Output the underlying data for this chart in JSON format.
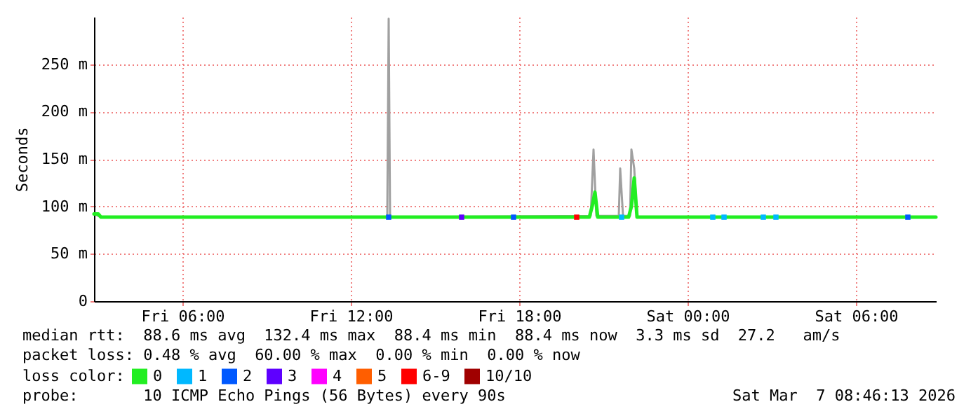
{
  "chart_data": {
    "type": "line",
    "ylabel": "Seconds",
    "legend_title": "loss color:",
    "legend": "bottom left",
    "grid": true,
    "xlim": [
      "2026-03-06T02:51",
      "2026-03-07T08:51"
    ],
    "xticks": [
      {
        "value": "2026-03-06T06:00",
        "label": "Fri 06:00"
      },
      {
        "value": "2026-03-06T12:00",
        "label": "Fri 12:00"
      },
      {
        "value": "2026-03-06T18:00",
        "label": "Fri 18:00"
      },
      {
        "value": "2026-03-07T00:00",
        "label": "Sat 00:00"
      },
      {
        "value": "2026-03-07T06:00",
        "label": "Sat 06:00"
      }
    ],
    "ylim": [
      0,
      300
    ],
    "yticks": [
      0,
      {
        "value": 50,
        "label": "50 m"
      },
      {
        "value": 100,
        "label": "100 m"
      },
      {
        "value": 150,
        "label": "150 m"
      },
      {
        "value": 200,
        "label": "200 m"
      },
      {
        "value": 250,
        "label": "250 m"
      }
    ],
    "series": [
      {
        "color": "#a0a0a0",
        "x": [
          "2026-03-06T02:51",
          "2026-03-06T03:06",
          "2026-03-06T13:18",
          "2026-03-06T13:21",
          "2026-03-06T13:24",
          "2026-03-06T20:33",
          "2026-03-06T20:39",
          "2026-03-06T20:45",
          "2026-03-06T21:33",
          "2026-03-06T21:36",
          "2026-03-06T21:42",
          "2026-03-06T21:57",
          "2026-03-06T22:00",
          "2026-03-06T22:06",
          "2026-03-06T22:12",
          "2026-03-07T08:51"
        ],
        "values": [
          92,
          88.6,
          88.6,
          298,
          88.6,
          90,
          160,
          90,
          90,
          140,
          90,
          90,
          160,
          140,
          88.6,
          88.6
        ]
      },
      {
        "name": "0",
        "color": "#22ee22",
        "x": [
          "2026-03-06T02:51",
          "2026-03-06T03:00",
          "2026-03-06T03:06",
          "2026-03-06T20:30",
          "2026-03-06T20:36",
          "2026-03-06T20:42",
          "2026-03-06T20:48",
          "2026-03-06T21:54",
          "2026-03-06T22:00",
          "2026-03-06T22:06",
          "2026-03-06T22:12",
          "2026-03-07T08:51"
        ],
        "values": [
          92,
          92,
          88.6,
          88.6,
          100,
          115,
          88.6,
          88.6,
          100,
          130,
          88.6,
          88.6
        ]
      },
      {
        "type": "scatter",
        "name": "1",
        "color": "#00b8ff",
        "x": [
          "2026-03-06T21:39",
          "2026-03-07T00:54",
          "2026-03-07T01:18",
          "2026-03-07T02:42",
          "2026-03-07T03:09"
        ],
        "values": [
          88.6,
          88.6,
          88.6,
          88.6,
          88.6
        ]
      },
      {
        "type": "scatter",
        "name": "2",
        "color": "#0059ff",
        "x": [
          "2026-03-06T13:21",
          "2026-03-06T17:48",
          "2026-03-07T07:51"
        ],
        "values": [
          88.6,
          88.6,
          88.6
        ]
      },
      {
        "type": "scatter",
        "name": "3",
        "color": "#5e00ff",
        "x": [
          "2026-03-06T15:57"
        ],
        "values": [
          88.6
        ]
      },
      {
        "type": "scatter",
        "name": "4",
        "color": "#ff00ff"
      },
      {
        "type": "scatter",
        "name": "5",
        "color": "#ff5e00"
      },
      {
        "type": "scatter",
        "name": "6-9",
        "color": "#ff0000",
        "x": [
          "2026-03-06T20:03"
        ],
        "values": [
          88.6
        ]
      },
      {
        "type": "scatter",
        "name": "10/10",
        "color": "#a00000"
      }
    ],
    "annotations": [
      "median rtt:  88.6 ms avg  132.4 ms max  88.4 ms min  88.4 ms now  3.3 ms sd  27.2   am/s",
      "packet loss: 0.48 % avg  60.00 % max  0.00 % min  0.00 % now",
      "probe:       10 ICMP Echo Pings (56 Bytes) every 90s",
      "Sat Mar  7 08:46:13 2026"
    ]
  }
}
